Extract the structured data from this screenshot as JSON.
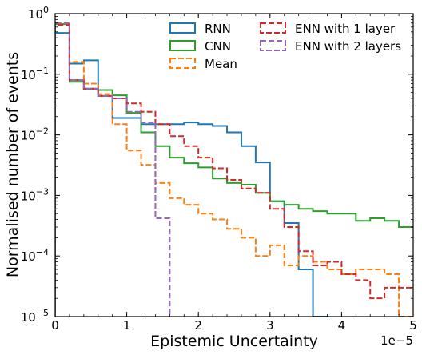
{
  "chart_data": {
    "type": "histogram-step",
    "title": "",
    "xlabel": "Epistemic Uncertainty",
    "ylabel": "Normalised number of events",
    "x_offset_label": "1e−5",
    "xlim": [
      0,
      5
    ],
    "ylim": [
      1e-05,
      1
    ],
    "yscale": "log",
    "grid": false,
    "legend_position": "top-right",
    "x_ticks": [
      {
        "value": 0,
        "label": "0"
      },
      {
        "value": 1,
        "label": "1"
      },
      {
        "value": 2,
        "label": "2"
      },
      {
        "value": 3,
        "label": "3"
      },
      {
        "value": 4,
        "label": "4"
      },
      {
        "value": 5,
        "label": "5"
      }
    ],
    "y_ticks": [
      {
        "value": 1e-05,
        "base": "10",
        "exp": "−5"
      },
      {
        "value": 0.0001,
        "base": "10",
        "exp": "−4"
      },
      {
        "value": 0.001,
        "base": "10",
        "exp": "−3"
      },
      {
        "value": 0.01,
        "base": "10",
        "exp": "−2"
      },
      {
        "value": 0.1,
        "base": "10",
        "exp": "−1"
      },
      {
        "value": 1,
        "base": "10",
        "exp": "0"
      }
    ],
    "bin_edges": [
      0,
      0.2,
      0.4,
      0.6,
      0.8,
      1.0,
      1.2,
      1.4,
      1.6,
      1.8,
      2.0,
      2.2,
      2.4,
      2.6,
      2.8,
      3.0,
      3.2,
      3.4,
      3.6,
      3.8,
      4.0,
      4.2,
      4.4,
      4.6,
      4.8,
      5.0
    ],
    "series": [
      {
        "name": "RNN",
        "color": "#1f77b4",
        "dash": "solid",
        "values": [
          0.48,
          0.15,
          0.17,
          0.044,
          0.019,
          0.019,
          0.015,
          0.015,
          0.015,
          0.016,
          0.015,
          0.014,
          0.011,
          0.0065,
          0.0035,
          0.0008,
          0.00035,
          6e-05,
          1e-05,
          null,
          null,
          null,
          null,
          null,
          null
        ]
      },
      {
        "name": "CNN",
        "color": "#2ca02c",
        "dash": "solid",
        "values": [
          0.67,
          0.075,
          0.057,
          0.055,
          0.045,
          0.023,
          0.011,
          0.0065,
          0.0042,
          0.0034,
          0.0029,
          0.0019,
          0.0016,
          0.0015,
          0.0011,
          0.0008,
          0.0007,
          0.0006,
          0.00055,
          0.0005,
          0.0005,
          0.00038,
          0.00042,
          0.00038,
          0.0003
        ]
      },
      {
        "name": "Mean",
        "color": "#ff7f0e",
        "dash": "dashed",
        "values": [
          0.7,
          0.16,
          0.07,
          0.047,
          0.015,
          0.0055,
          0.0032,
          0.0016,
          0.0009,
          0.0007,
          0.0005,
          0.0004,
          0.00028,
          0.0002,
          0.0001,
          0.00015,
          7e-05,
          0.0001,
          8e-05,
          6e-05,
          5e-05,
          6e-05,
          6e-05,
          5e-05,
          1e-05
        ]
      },
      {
        "name": "ENN with 1 layer",
        "color": "#d62728",
        "dash": "dashed",
        "values": [
          0.65,
          0.08,
          0.058,
          0.044,
          0.04,
          0.033,
          0.024,
          0.015,
          0.0095,
          0.0065,
          0.0042,
          0.0028,
          0.0018,
          0.0013,
          0.0011,
          0.0006,
          0.0003,
          0.00012,
          7e-05,
          8e-05,
          5e-05,
          4e-05,
          2e-05,
          3e-05,
          3e-05
        ]
      },
      {
        "name": "ENN with 2 layers",
        "color": "#9467bd",
        "dash": "dashed",
        "values": [
          0.7,
          0.08,
          0.058,
          0.044,
          0.04,
          0.024,
          0.016,
          0.00042,
          null,
          null,
          null,
          null,
          null,
          null,
          null,
          null,
          null,
          null,
          null,
          null,
          null,
          null,
          null,
          null,
          null
        ]
      }
    ]
  }
}
